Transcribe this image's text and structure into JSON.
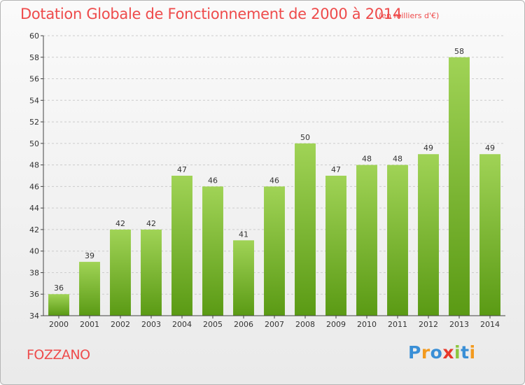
{
  "title": "Dotation Globale de Fonctionnement de 2000 à 2014",
  "unit_note": "(en milliers d'€)",
  "commune": "FOZZANO",
  "logo": {
    "text": "Proxiti",
    "letters": [
      {
        "ch": "P",
        "color": "#3a8fd6"
      },
      {
        "ch": "r",
        "color": "#f39a1e"
      },
      {
        "ch": "o",
        "color": "#3a8fd6"
      },
      {
        "ch": "x",
        "color": "#e8392c"
      },
      {
        "ch": "i",
        "color": "#8cc63f"
      },
      {
        "ch": "t",
        "color": "#3a8fd6"
      },
      {
        "ch": "i",
        "color": "#f39a1e"
      }
    ]
  },
  "colors": {
    "bar_top": "#a0d356",
    "bar_bottom": "#5a9a14",
    "grid": "#cccccc",
    "axis": "#444444",
    "text_accent": "#ee4b4b"
  },
  "chart_data": {
    "type": "bar",
    "title": "Dotation Globale de Fonctionnement de 2000 à 2014",
    "categories": [
      "2000",
      "2001",
      "2002",
      "2003",
      "2004",
      "2005",
      "2006",
      "2007",
      "2008",
      "2009",
      "2010",
      "2011",
      "2012",
      "2013",
      "2014"
    ],
    "values": [
      36,
      39,
      42,
      42,
      47,
      46,
      41,
      46,
      50,
      47,
      48,
      48,
      49,
      58,
      49
    ],
    "ylim": [
      34,
      60
    ],
    "ytick_step": 2,
    "yticks": [
      34,
      36,
      38,
      40,
      42,
      44,
      46,
      48,
      50,
      52,
      54,
      56,
      58,
      60
    ],
    "grid": true,
    "xlabel": "",
    "ylabel": ""
  }
}
